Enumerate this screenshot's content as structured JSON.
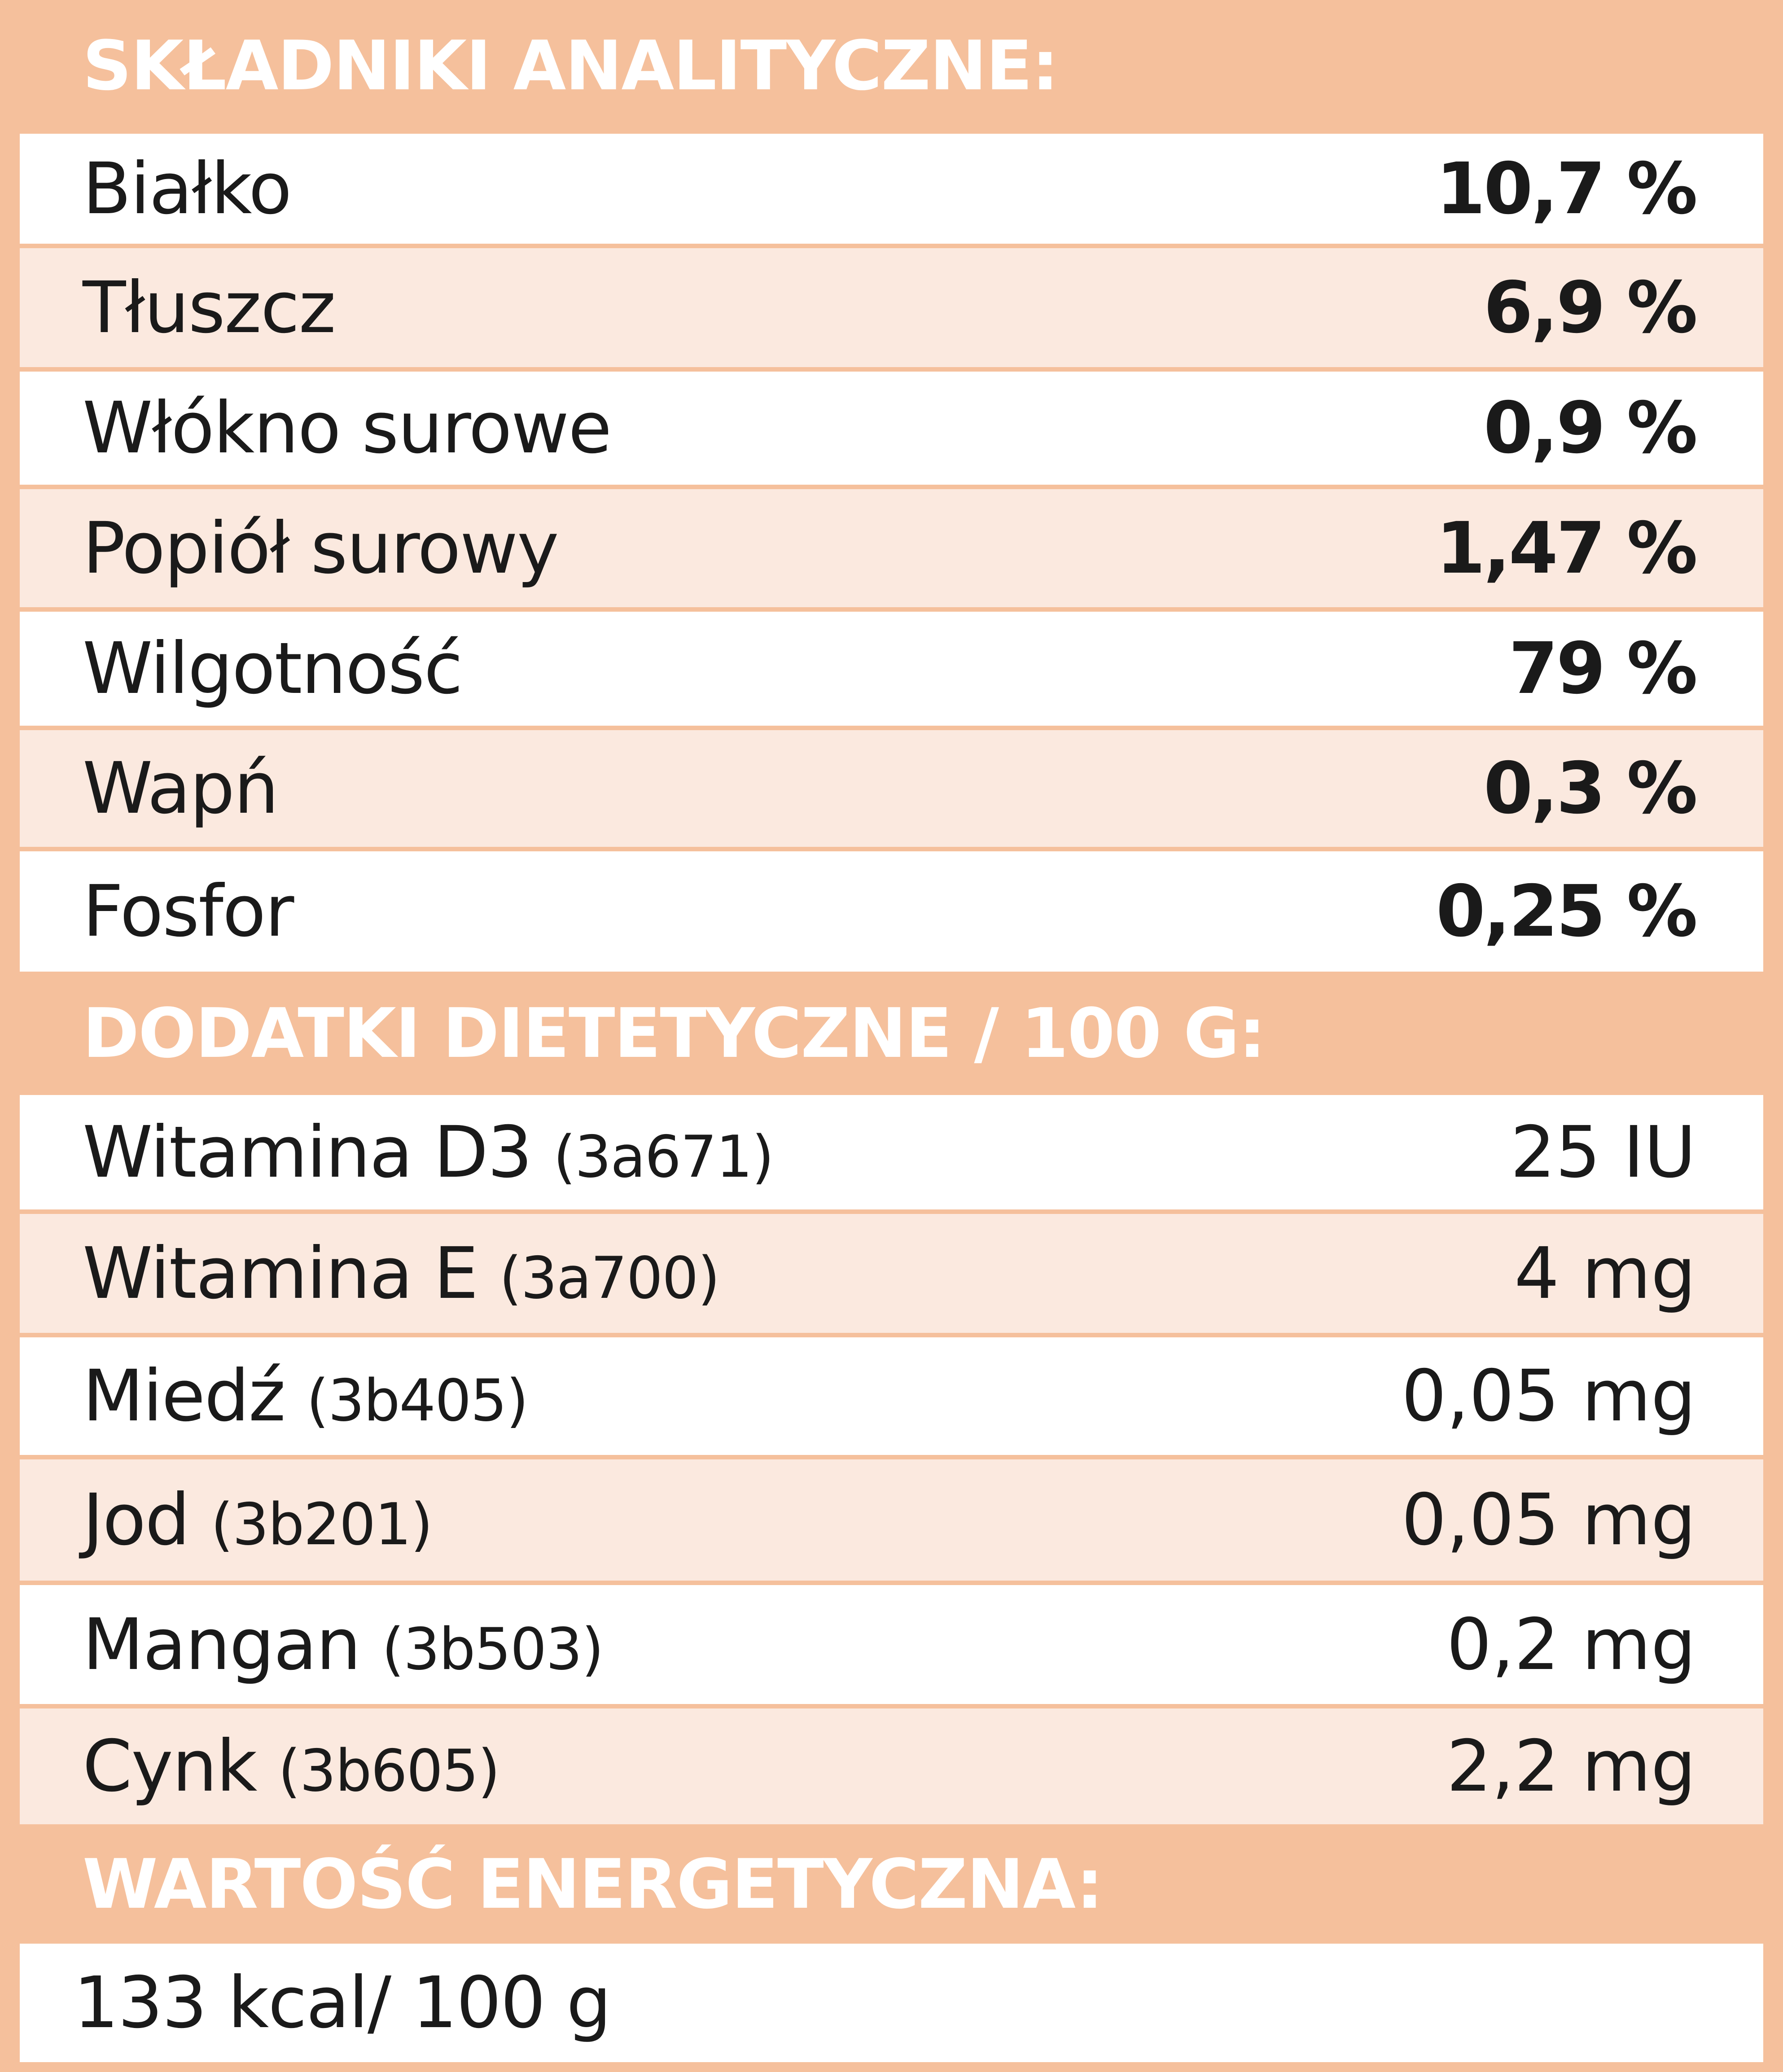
{
  "sections": {
    "analytical": {
      "title": "SKŁADNIKI ANALITYCZNE:",
      "rows": [
        {
          "name": "Białko",
          "value": "10,7 %"
        },
        {
          "name": "Tłuszcz",
          "value": "6,9 %"
        },
        {
          "name": "Włókno surowe",
          "value": "0,9 %"
        },
        {
          "name": "Popiół surowy",
          "value": "1,47 %"
        },
        {
          "name": "Wilgotność",
          "value": "79 %"
        },
        {
          "name": "Wapń",
          "value": "0,3 %"
        },
        {
          "name": "Fosfor",
          "value": "0,25 %"
        }
      ]
    },
    "additives": {
      "title": "DODATKI DIETETYCZNE / 100 G:",
      "rows": [
        {
          "name": "Witamina D3",
          "code": "(3a671)",
          "value": "25 IU"
        },
        {
          "name": "Witamina E",
          "code": "(3a700)",
          "value": "4 mg"
        },
        {
          "name": "Miedź",
          "code": "(3b405)",
          "value": "0,05 mg"
        },
        {
          "name": "Jod",
          "code": "(3b201)",
          "value": "0,05 mg"
        },
        {
          "name": "Mangan",
          "code": "(3b503)",
          "value": "0,2 mg"
        },
        {
          "name": "Cynk",
          "code": "(3b605)",
          "value": "2,2 mg"
        }
      ]
    },
    "energy": {
      "title": "WARTOŚĆ ENERGETYCZNA:",
      "value": "133 kcal/ 100 g"
    }
  },
  "colors": {
    "header_bg": "#f5c09c",
    "header_text": "#ffffff",
    "row_white": "#ffffff",
    "row_tint": "#fbe9df",
    "text": "#1a1a1a"
  }
}
